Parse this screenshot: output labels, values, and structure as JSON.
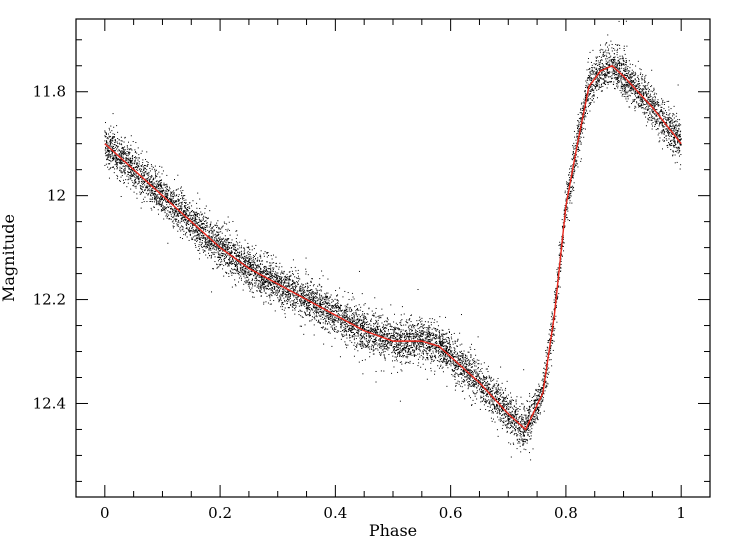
{
  "chart_data": {
    "type": "scatter",
    "xlabel": "Phase",
    "ylabel": "Magnitude",
    "xlim": [
      -0.05,
      1.05
    ],
    "ylim": [
      12.58,
      11.66
    ],
    "y_inverted": true,
    "x_ticks": [
      0,
      0.2,
      0.4,
      0.6,
      0.8,
      1
    ],
    "x_tick_labels": [
      "0",
      "0.2",
      "0.4",
      "0.6",
      "0.8",
      "1"
    ],
    "y_ticks": [
      11.8,
      12,
      12.2,
      12.4
    ],
    "y_tick_labels": [
      "11.8",
      "12",
      "12.2",
      "12.4"
    ],
    "grid": false,
    "legend": "none",
    "series": [
      {
        "kind": "scatter",
        "color": "#000000",
        "note_count_approx": 9000,
        "scatter_sigma_mag": 0.02
      },
      {
        "kind": "line",
        "color": "#e8261b",
        "x": [
          0,
          0.05,
          0.1,
          0.15,
          0.2,
          0.25,
          0.3,
          0.35,
          0.4,
          0.45,
          0.5,
          0.55,
          0.58,
          0.6,
          0.65,
          0.7,
          0.73,
          0.76,
          0.78,
          0.8,
          0.82,
          0.84,
          0.86,
          0.88,
          0.9,
          0.95,
          1
        ],
        "y": [
          11.9,
          11.95,
          12.0,
          12.05,
          12.1,
          12.14,
          12.17,
          12.2,
          12.23,
          12.26,
          12.28,
          12.28,
          12.29,
          12.31,
          12.36,
          12.42,
          12.45,
          12.38,
          12.23,
          12.02,
          11.9,
          11.79,
          11.76,
          11.75,
          11.77,
          11.83,
          11.9
        ]
      }
    ]
  }
}
